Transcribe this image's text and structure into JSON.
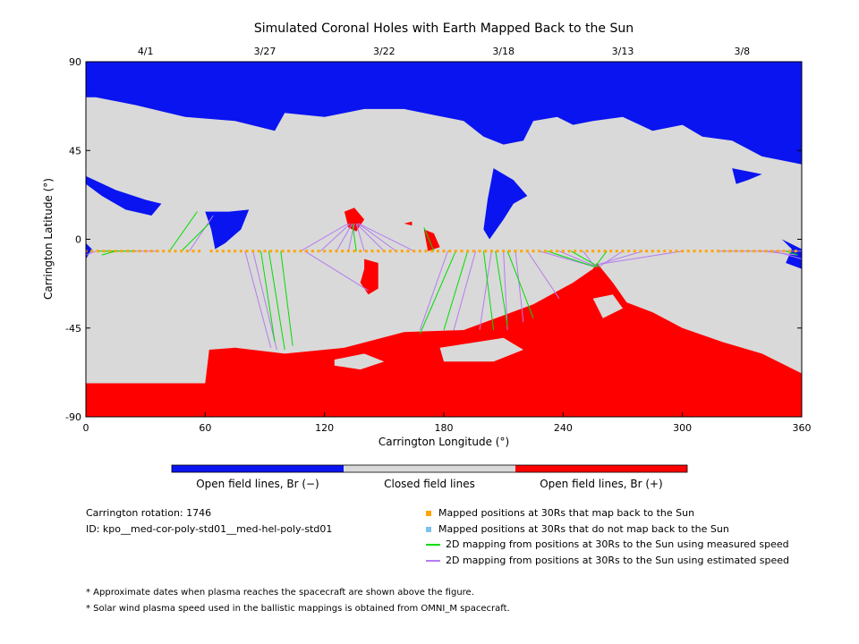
{
  "colors": {
    "open_neg": "#0a14f0",
    "closed": "#d9d9d9",
    "open_pos": "#ff0000",
    "map_back": "#ffa500",
    "no_map_back": "#7ec0ee",
    "measured": "#00dd00",
    "estimated": "#b57cf0"
  },
  "chart_data": {
    "type": "map",
    "title": "Simulated Coronal Holes with Earth Mapped Back to the Sun",
    "xlabel": "Carrington Longitude (°)",
    "ylabel": "Carrington Latitude (°)",
    "xlim": [
      0,
      360
    ],
    "ylim": [
      -90,
      90
    ],
    "x_ticks": [
      0,
      60,
      120,
      180,
      240,
      300,
      360
    ],
    "y_ticks": [
      -90,
      -45,
      0,
      45,
      90
    ],
    "date_ticks": [
      {
        "label": "4/1",
        "lon": 30
      },
      {
        "label": "3/27",
        "lon": 90
      },
      {
        "label": "3/22",
        "lon": 150
      },
      {
        "label": "3/18",
        "lon": 210
      },
      {
        "label": "3/13",
        "lon": 270
      },
      {
        "label": "3/8",
        "lon": 330
      }
    ],
    "regions": {
      "north_open_neg": [
        [
          0,
          90
        ],
        [
          360,
          90
        ],
        [
          360,
          38
        ],
        [
          340,
          42
        ],
        [
          325,
          50
        ],
        [
          310,
          52
        ],
        [
          300,
          58
        ],
        [
          285,
          55
        ],
        [
          270,
          62
        ],
        [
          255,
          60
        ],
        [
          245,
          58
        ],
        [
          237,
          62
        ],
        [
          225,
          60
        ],
        [
          220,
          50
        ],
        [
          210,
          48
        ],
        [
          200,
          52
        ],
        [
          190,
          60
        ],
        [
          175,
          63
        ],
        [
          160,
          66
        ],
        [
          140,
          66
        ],
        [
          120,
          62
        ],
        [
          100,
          64
        ],
        [
          95,
          55
        ],
        [
          75,
          60
        ],
        [
          50,
          62
        ],
        [
          25,
          68
        ],
        [
          5,
          72
        ],
        [
          0,
          72
        ]
      ],
      "north_neg_lobe1": [
        [
          0,
          32
        ],
        [
          15,
          25
        ],
        [
          30,
          20
        ],
        [
          38,
          18
        ],
        [
          33,
          12
        ],
        [
          20,
          15
        ],
        [
          8,
          22
        ],
        [
          0,
          28
        ]
      ],
      "north_neg_lobe2": [
        [
          60,
          14
        ],
        [
          72,
          14
        ],
        [
          82,
          15
        ],
        [
          78,
          5
        ],
        [
          70,
          -2
        ],
        [
          65,
          -5
        ],
        [
          63,
          5
        ]
      ],
      "north_neg_lobe3": [
        [
          205,
          36
        ],
        [
          215,
          30
        ],
        [
          222,
          22
        ],
        [
          215,
          18
        ],
        [
          210,
          10
        ],
        [
          203,
          0
        ],
        [
          200,
          5
        ],
        [
          202,
          20
        ]
      ],
      "north_neg_lobe4": [
        [
          325,
          36
        ],
        [
          335,
          34
        ],
        [
          340,
          33
        ],
        [
          333,
          30
        ],
        [
          327,
          28
        ]
      ],
      "east_neg_limb": [
        [
          350,
          0
        ],
        [
          360,
          -5
        ],
        [
          360,
          -15
        ],
        [
          352,
          -12
        ],
        [
          355,
          -5
        ]
      ],
      "west_neg_limb": [
        [
          0,
          -2
        ],
        [
          3,
          -5
        ],
        [
          0,
          -10
        ]
      ],
      "south_open_pos": [
        [
          0,
          -73
        ],
        [
          60,
          -73
        ],
        [
          62,
          -56
        ],
        [
          75,
          -55
        ],
        [
          100,
          -58
        ],
        [
          130,
          -55
        ],
        [
          160,
          -47
        ],
        [
          190,
          -46
        ],
        [
          225,
          -33
        ],
        [
          245,
          -22
        ],
        [
          255,
          -15
        ],
        [
          257,
          -12
        ],
        [
          265,
          -22
        ],
        [
          272,
          -32
        ],
        [
          285,
          -37
        ],
        [
          300,
          -45
        ],
        [
          320,
          -52
        ],
        [
          340,
          -58
        ],
        [
          360,
          -68
        ],
        [
          360,
          -90
        ],
        [
          0,
          -90
        ]
      ],
      "pos_blob_1": [
        [
          130,
          14
        ],
        [
          135,
          16
        ],
        [
          140,
          10
        ],
        [
          136,
          4
        ],
        [
          132,
          6
        ]
      ],
      "pos_blob_2": [
        [
          140,
          -10
        ],
        [
          147,
          -12
        ],
        [
          147,
          -25
        ],
        [
          142,
          -28
        ],
        [
          138,
          -22
        ],
        [
          140,
          -15
        ]
      ],
      "pos_blob_3": [
        [
          170,
          5
        ],
        [
          175,
          3
        ],
        [
          178,
          -4
        ],
        [
          172,
          -6
        ]
      ],
      "pos_blob_4": [
        [
          160,
          8
        ],
        [
          164,
          7
        ],
        [
          164,
          9
        ]
      ],
      "closed_island_1": [
        [
          125,
          -61
        ],
        [
          140,
          -58
        ],
        [
          150,
          -62
        ],
        [
          138,
          -66
        ],
        [
          125,
          -64
        ]
      ],
      "closed_island_2": [
        [
          178,
          -55
        ],
        [
          210,
          -50
        ],
        [
          220,
          -56
        ],
        [
          205,
          -62
        ],
        [
          180,
          -62
        ]
      ],
      "closed_island_3": [
        [
          255,
          -30
        ],
        [
          265,
          -28
        ],
        [
          270,
          -35
        ],
        [
          260,
          -40
        ]
      ]
    },
    "points_map_back_lon": [
      0,
      3,
      6,
      9,
      12,
      15,
      18,
      21,
      24,
      27,
      30,
      33,
      36,
      39,
      42,
      45,
      48,
      51,
      54,
      57,
      63,
      66,
      69,
      72,
      75,
      78,
      81,
      84,
      87,
      90,
      93,
      96,
      99,
      102,
      105,
      108,
      111,
      114,
      117,
      120,
      123,
      126,
      129,
      132,
      135,
      138,
      141,
      144,
      147,
      150,
      153,
      156,
      159,
      162,
      165,
      168,
      171,
      174,
      177,
      180,
      183,
      186,
      189,
      192,
      195,
      198,
      201,
      204,
      207,
      210,
      213,
      216,
      219,
      222,
      225,
      228,
      231,
      234,
      237,
      240,
      243,
      246,
      249,
      252,
      255,
      258,
      261,
      264,
      267,
      270,
      273,
      276,
      279,
      282,
      285,
      288,
      291,
      294,
      297,
      300,
      303,
      306,
      309,
      312,
      315,
      318,
      321,
      324,
      327,
      330,
      333,
      336,
      339,
      342,
      345,
      348,
      351,
      354,
      357
    ],
    "points_lat": -6,
    "mapping_measured": [
      {
        "from": 15,
        "to": [
          8,
          -8
        ]
      },
      {
        "from": 25,
        "to": [
          6,
          -6
        ]
      },
      {
        "from": 42,
        "to": [
          56,
          14
        ]
      },
      {
        "from": 48,
        "to": [
          62,
          8
        ]
      },
      {
        "from": 88,
        "to": [
          95,
          -52
        ]
      },
      {
        "from": 92,
        "to": [
          100,
          -56
        ]
      },
      {
        "from": 98,
        "to": [
          104,
          -54
        ]
      },
      {
        "from": 136,
        "to": [
          134,
          8
        ]
      },
      {
        "from": 175,
        "to": [
          170,
          6
        ]
      },
      {
        "from": 186,
        "to": [
          168,
          -48
        ]
      },
      {
        "from": 192,
        "to": [
          180,
          -46
        ]
      },
      {
        "from": 200,
        "to": [
          205,
          -46
        ]
      },
      {
        "from": 206,
        "to": [
          212,
          -44
        ]
      },
      {
        "from": 212,
        "to": [
          225,
          -40
        ]
      },
      {
        "from": 232,
        "to": [
          256,
          -14
        ]
      },
      {
        "from": 244,
        "to": [
          258,
          -14
        ]
      },
      {
        "from": 262,
        "to": [
          256,
          -14
        ]
      },
      {
        "from": 352,
        "to": [
          358,
          -8
        ]
      }
    ],
    "mapping_estimated": [
      {
        "from": 5,
        "to": [
          0,
          -8
        ]
      },
      {
        "from": 36,
        "to": [
          10,
          -6
        ]
      },
      {
        "from": 52,
        "to": [
          64,
          12
        ]
      },
      {
        "from": 80,
        "to": [
          93,
          -55
        ]
      },
      {
        "from": 84,
        "to": [
          96,
          -56
        ]
      },
      {
        "from": 108,
        "to": [
          132,
          8
        ]
      },
      {
        "from": 118,
        "to": [
          133,
          8
        ]
      },
      {
        "from": 126,
        "to": [
          134,
          8
        ]
      },
      {
        "from": 132,
        "to": [
          135,
          8
        ]
      },
      {
        "from": 140,
        "to": [
          136,
          8
        ]
      },
      {
        "from": 150,
        "to": [
          136,
          8
        ]
      },
      {
        "from": 156,
        "to": [
          137,
          8
        ]
      },
      {
        "from": 165,
        "to": [
          137,
          8
        ]
      },
      {
        "from": 110,
        "to": [
          142,
          -26
        ]
      },
      {
        "from": 182,
        "to": [
          168,
          -46
        ]
      },
      {
        "from": 196,
        "to": [
          185,
          -46
        ]
      },
      {
        "from": 204,
        "to": [
          198,
          -46
        ]
      },
      {
        "from": 210,
        "to": [
          212,
          -46
        ]
      },
      {
        "from": 216,
        "to": [
          220,
          -42
        ]
      },
      {
        "from": 222,
        "to": [
          238,
          -30
        ]
      },
      {
        "from": 228,
        "to": [
          256,
          -14
        ]
      },
      {
        "from": 238,
        "to": [
          257,
          -14
        ]
      },
      {
        "from": 250,
        "to": [
          256,
          -14
        ]
      },
      {
        "from": 270,
        "to": [
          258,
          -14
        ]
      },
      {
        "from": 280,
        "to": [
          257,
          -13
        ]
      },
      {
        "from": 300,
        "to": [
          256,
          -13
        ]
      },
      {
        "from": 318,
        "to": [
          360,
          -6
        ]
      },
      {
        "from": 340,
        "to": [
          358,
          -8
        ]
      },
      {
        "from": 346,
        "to": [
          360,
          -10
        ]
      }
    ]
  },
  "colorbar": {
    "neg_label": "Open field lines, Br (−)",
    "closed_label": "Closed field lines",
    "pos_label": "Open field lines, Br (+)"
  },
  "info": {
    "rotation": "Carrington rotation: 1746",
    "id": "ID: kpo__med-cor-poly-std01__med-hel-poly-std01"
  },
  "legend": {
    "map_back": "Mapped positions at 30Rs that map back to the Sun",
    "no_map_back": "Mapped positions at 30Rs that do not map back to the Sun",
    "measured": "2D mapping from positions at 30Rs to the Sun using measured speed",
    "estimated": "2D mapping from positions at 30Rs to the Sun using estimated speed"
  },
  "footnotes": {
    "f1": "* Approximate dates when plasma reaches the spacecraft are shown above the figure.",
    "f2": "* Solar wind plasma speed used in the ballistic mappings is obtained from OMNI_M spacecraft."
  }
}
